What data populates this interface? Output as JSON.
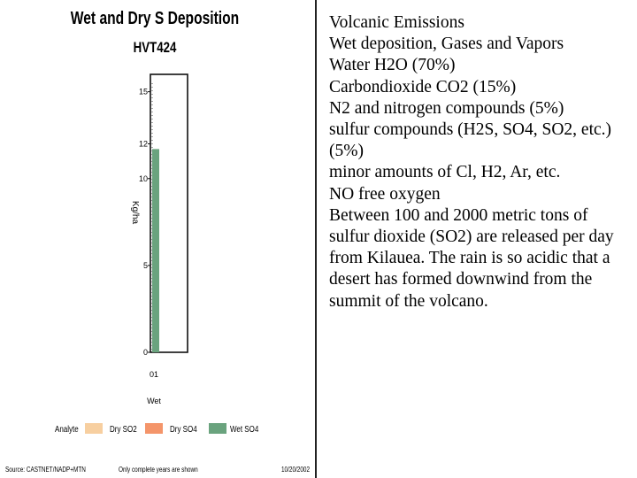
{
  "chart_data": {
    "type": "bar",
    "title": "Wet and Dry S Deposition",
    "subtitle": "HVT424",
    "ylabel": "Kg/ha",
    "ylim": [
      0,
      16
    ],
    "yticks": [
      0,
      5,
      10,
      12,
      15
    ],
    "categories": [
      "01"
    ],
    "category_group_label": "Wet",
    "series": [
      {
        "name": "Dry SO2",
        "values": [
          0
        ],
        "color": "#f7cfa0"
      },
      {
        "name": "Dry SO4",
        "values": [
          0
        ],
        "color": "#f4956a"
      },
      {
        "name": "Wet SO4",
        "values": [
          11.7
        ],
        "color": "#6aa37e"
      }
    ],
    "legend_title": "Analyte",
    "source_text": "Source: CASTNET/NADP+MTN",
    "note_text": "Only complete years are shown",
    "date_text": "10/20/2002",
    "legend": "bottom"
  },
  "text": {
    "lines": [
      "Volcanic Emissions",
      "Wet deposition, Gases and Vapors",
      "Water H2O (70%)",
      "Carbondioxide CO2 (15%)",
      "N2 and nitrogen compounds (5%)",
      "sulfur compounds (H2S, SO4, SO2, etc.) (5%)",
      "minor amounts of Cl, H2, Ar, etc.",
      "NO free oxygen",
      "Between 100 and 2000 metric tons of sulfur dioxide (SO2) are released per day from Kilauea. The rain is so acidic that a desert has formed downwind from the summit of the volcano."
    ]
  }
}
